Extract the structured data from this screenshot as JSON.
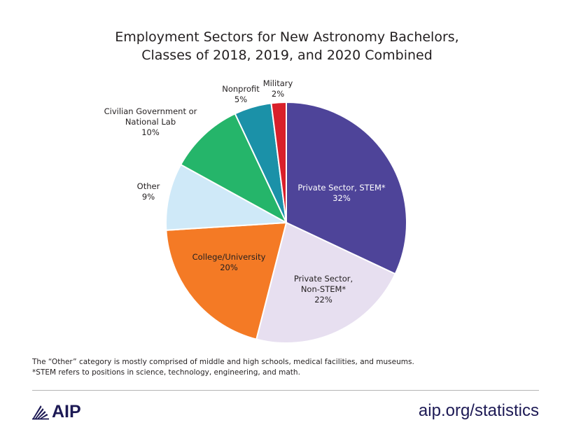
{
  "chart_data": {
    "type": "pie",
    "title": "Employment Sectors for New Astronomy Bachelors,",
    "subtitle": "Classes of 2018, 2019, and 2020 Combined",
    "start_angle": "top",
    "direction": "clockwise",
    "slices": [
      {
        "label_lines": [
          "Private Sector, STEM*",
          "32%"
        ],
        "name": "Private Sector, STEM*",
        "value": 32,
        "color": "#4e4499",
        "label_color": "#ffffff",
        "label_inside": true
      },
      {
        "label_lines": [
          "Private Sector,",
          "Non-STEM*",
          "22%"
        ],
        "name": "Private Sector, Non-STEM*",
        "value": 22,
        "color": "#e7dff0",
        "label_color": "#231f20",
        "label_inside": true
      },
      {
        "label_lines": [
          "College/University",
          "20%"
        ],
        "name": "College/University",
        "value": 20,
        "color": "#f47a25",
        "label_color": "#231f20",
        "label_inside": true
      },
      {
        "label_lines": [
          "Other",
          "9%"
        ],
        "name": "Other",
        "value": 9,
        "color": "#cfe9f8",
        "label_color": "#231f20",
        "label_inside": false
      },
      {
        "label_lines": [
          "Civilian Government or",
          "National Lab",
          "10%"
        ],
        "name": "Civilian Government or National Lab",
        "value": 10,
        "color": "#25b56a",
        "label_color": "#231f20",
        "label_inside": false
      },
      {
        "label_lines": [
          "Nonprofit",
          "5%"
        ],
        "name": "Nonprofit",
        "value": 5,
        "color": "#1b91a8",
        "label_color": "#231f20",
        "label_inside": false
      },
      {
        "label_lines": [
          "Military",
          "2%"
        ],
        "name": "Military",
        "value": 2,
        "color": "#d9202a",
        "label_color": "#231f20",
        "label_inside": false
      }
    ]
  },
  "notes": [
    "The “Other” category is mostly comprised of middle and high schools, medical facilities, and museums.",
    "*STEM refers to positions in science, technology, engineering, and math."
  ],
  "footer": {
    "logo_text": "AIP",
    "url": "aip.org/statistics"
  }
}
